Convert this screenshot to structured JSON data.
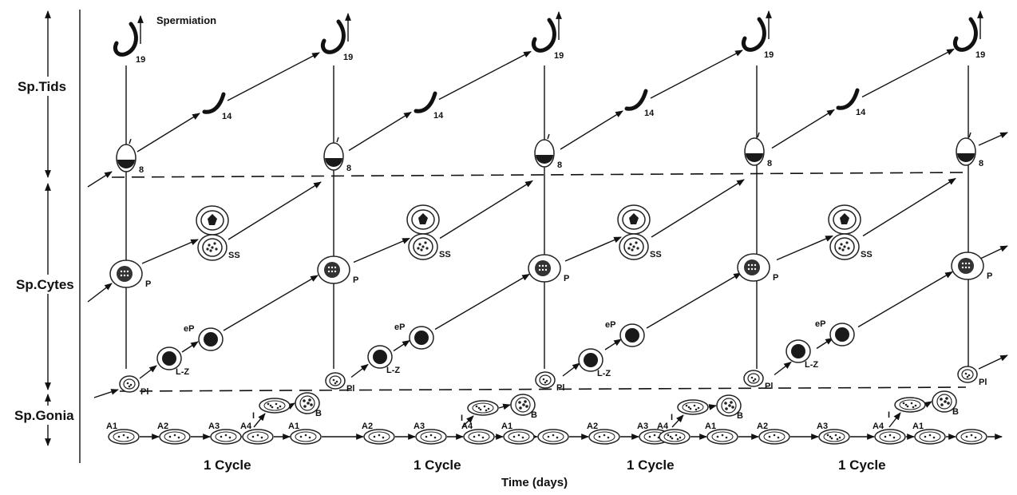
{
  "phases": {
    "spermatids": "Sp.Tids",
    "spermatocytes": "Sp.Cytes",
    "spermatogonia": "Sp.Gonia"
  },
  "spermiation_label": "Spermiation",
  "axis_label": "Time (days)",
  "cycle_label": "1 Cycle",
  "spermatid_steps": {
    "step8": "8",
    "step14": "14",
    "step19": "19"
  },
  "spermatocyte_stages": {
    "pl": "Pl",
    "lz": "L-Z",
    "ep": "eP",
    "p": "P",
    "ss": "SS"
  },
  "spermatogonia_types": [
    "A1",
    "A2",
    "A3",
    "A4",
    "I",
    "B"
  ],
  "cycles_shown": 4
}
